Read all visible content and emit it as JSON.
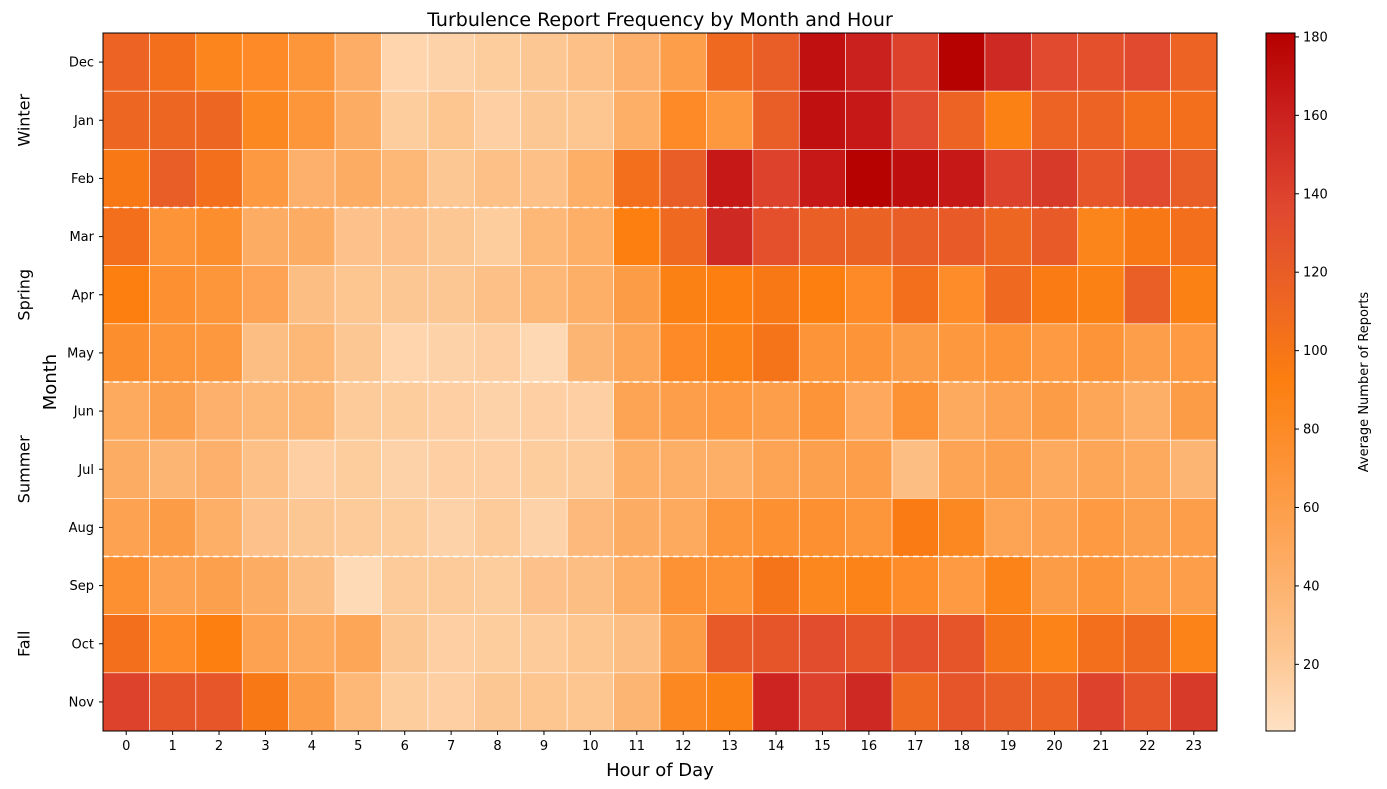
{
  "chart_data": {
    "type": "heatmap",
    "title": "Turbulence Report Frequency by Month and Hour",
    "xlabel": "Hour of Day",
    "ylabel": "Month",
    "x_categories": [
      "0",
      "1",
      "2",
      "3",
      "4",
      "5",
      "6",
      "7",
      "8",
      "9",
      "10",
      "11",
      "12",
      "13",
      "14",
      "15",
      "16",
      "17",
      "18",
      "19",
      "20",
      "21",
      "22",
      "23"
    ],
    "y_categories": [
      "Dec",
      "Jan",
      "Feb",
      "Mar",
      "Apr",
      "May",
      "Jun",
      "Jul",
      "Aug",
      "Sep",
      "Oct",
      "Nov"
    ],
    "season_labels": [
      {
        "label": "Winter",
        "rows": [
          0,
          2
        ]
      },
      {
        "label": "Spring",
        "rows": [
          3,
          5
        ]
      },
      {
        "label": "Summer",
        "rows": [
          6,
          8
        ]
      },
      {
        "label": "Fall",
        "rows": [
          9,
          11
        ]
      }
    ],
    "season_dividers_after_rows": [
      2,
      5,
      8
    ],
    "values": [
      [
        115,
        105,
        85,
        80,
        68,
        45,
        12,
        14,
        18,
        22,
        28,
        42,
        60,
        110,
        120,
        170,
        160,
        140,
        180,
        155,
        135,
        130,
        135,
        115
      ],
      [
        112,
        112,
        112,
        82,
        68,
        46,
        18,
        24,
        16,
        22,
        24,
        44,
        80,
        66,
        120,
        170,
        165,
        135,
        115,
        90,
        115,
        115,
        105,
        105
      ],
      [
        98,
        120,
        105,
        65,
        42,
        46,
        36,
        22,
        28,
        28,
        44,
        105,
        120,
        165,
        140,
        165,
        180,
        172,
        165,
        140,
        145,
        125,
        135,
        120
      ],
      [
        105,
        70,
        76,
        46,
        46,
        26,
        26,
        22,
        18,
        36,
        44,
        92,
        110,
        155,
        130,
        118,
        116,
        120,
        122,
        112,
        122,
        86,
        98,
        105
      ],
      [
        92,
        74,
        68,
        55,
        30,
        24,
        22,
        22,
        28,
        36,
        44,
        62,
        90,
        92,
        98,
        92,
        80,
        105,
        78,
        110,
        95,
        90,
        118,
        90
      ],
      [
        76,
        68,
        66,
        30,
        36,
        22,
        12,
        14,
        16,
        10,
        38,
        52,
        80,
        88,
        102,
        70,
        70,
        62,
        66,
        70,
        64,
        70,
        60,
        64
      ],
      [
        48,
        58,
        42,
        36,
        36,
        20,
        18,
        16,
        14,
        16,
        16,
        54,
        60,
        64,
        60,
        70,
        50,
        72,
        48,
        56,
        62,
        52,
        44,
        62
      ],
      [
        46,
        38,
        42,
        28,
        16,
        18,
        14,
        16,
        16,
        18,
        20,
        44,
        44,
        44,
        54,
        58,
        60,
        30,
        54,
        58,
        48,
        52,
        48,
        38
      ],
      [
        56,
        62,
        44,
        26,
        22,
        20,
        18,
        14,
        20,
        14,
        34,
        46,
        48,
        68,
        74,
        74,
        68,
        95,
        82,
        54,
        56,
        64,
        58,
        60
      ],
      [
        74,
        56,
        58,
        46,
        30,
        8,
        20,
        20,
        18,
        26,
        30,
        44,
        72,
        72,
        102,
        84,
        88,
        78,
        64,
        88,
        62,
        70,
        60,
        60
      ],
      [
        105,
        80,
        92,
        56,
        48,
        52,
        22,
        16,
        18,
        20,
        24,
        30,
        62,
        122,
        126,
        132,
        126,
        130,
        126,
        102,
        88,
        105,
        110,
        88
      ],
      [
        140,
        126,
        125,
        98,
        62,
        36,
        18,
        16,
        22,
        24,
        24,
        38,
        82,
        90,
        158,
        140,
        155,
        110,
        126,
        120,
        115,
        140,
        126,
        145
      ]
    ],
    "vmin": 3,
    "vmax": 181,
    "colormap": [
      "#fee1c4",
      "#fdc38c",
      "#fdaa60",
      "#fd9438",
      "#fc7f10",
      "#ec6424",
      "#e0482f",
      "#cc2320",
      "#b50000"
    ],
    "colorbar": {
      "label": "Average Number of Reports",
      "ticks": [
        20,
        40,
        60,
        80,
        100,
        120,
        140,
        160,
        180
      ]
    },
    "grid_color": "#ffffff",
    "divider_color": "#ffffff"
  }
}
